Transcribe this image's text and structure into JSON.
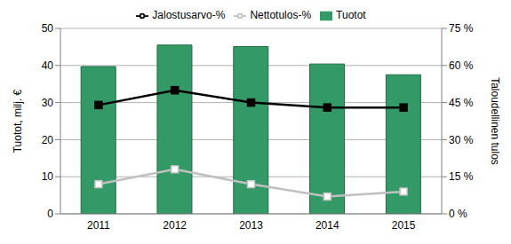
{
  "chart_data": {
    "type": "bar",
    "categories": [
      "2011",
      "2012",
      "2013",
      "2014",
      "2015"
    ],
    "ylabel": "Tuotot, milj. €",
    "y2label": "Taloudellinen tulos",
    "ylim": [
      0,
      50
    ],
    "yticks": [
      0,
      10,
      20,
      30,
      40,
      50
    ],
    "y2lim": [
      0,
      75
    ],
    "y2ticks": [
      {
        "value": 0,
        "label": "0 %"
      },
      {
        "value": 15,
        "label": "15 %"
      },
      {
        "value": 30,
        "label": "30 %"
      },
      {
        "value": 45,
        "label": "45 %"
      },
      {
        "value": 60,
        "label": "60 %"
      },
      {
        "value": 75,
        "label": "75 %"
      }
    ],
    "grid": true,
    "legend": "top",
    "series": [
      {
        "name": "Tuotot",
        "type": "bar",
        "color": "#339966",
        "values": [
          39.7,
          45.5,
          45.1,
          40.4,
          37.5
        ]
      },
      {
        "name": "Jalostusarvo-%",
        "type": "line",
        "axis": "y2",
        "color": "#000000",
        "marker": "square",
        "values": [
          44,
          50,
          45,
          43,
          43
        ]
      },
      {
        "name": "Nettotulos-%",
        "type": "line",
        "axis": "y2",
        "color": "#c0c0c0",
        "marker": "open_square",
        "values": [
          12,
          18,
          12,
          7,
          9
        ]
      }
    ]
  }
}
